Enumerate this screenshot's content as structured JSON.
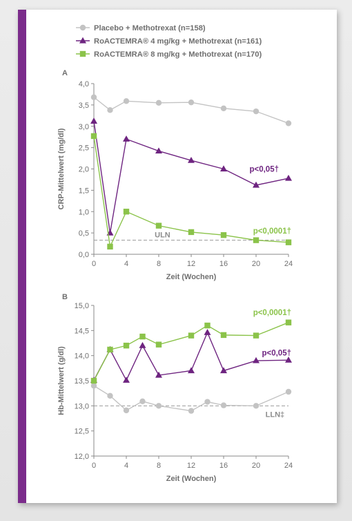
{
  "colors": {
    "placebo": "#c3c3c3",
    "tcz4": "#6e2480",
    "tcz8": "#8bc34a",
    "axis": "#8a8a8a",
    "text": "#6f6f6f",
    "reference_line": "#9a9a9a",
    "border": "#7b2c8b"
  },
  "legend": [
    {
      "label": "Placebo + Methotrexat (n=158)",
      "marker": "circle",
      "color_key": "placebo"
    },
    {
      "label": "RoACTEMRA® 4 mg/kg + Methotrexat (n=161)",
      "marker": "triangle",
      "color_key": "tcz4"
    },
    {
      "label": "RoACTEMRA® 8 mg/kg + Methotrexat (n=170)",
      "marker": "square",
      "color_key": "tcz8"
    }
  ],
  "chart_data": [
    {
      "type": "line",
      "panel_label": "A",
      "xlabel": "Zeit (Wochen)",
      "ylabel": "CRP-Mittelwert (mg/dl)",
      "xlim": [
        0,
        24
      ],
      "ylim": [
        0,
        4.0
      ],
      "xticks": [
        0,
        4,
        8,
        12,
        16,
        20,
        24
      ],
      "xtick_labels": [
        "0",
        "4",
        "8",
        "12",
        "16",
        "20",
        "24"
      ],
      "yticks": [
        0,
        0.5,
        1.0,
        1.5,
        2.0,
        2.5,
        3.0,
        3.5,
        4.0
      ],
      "ytick_labels": [
        "0,0",
        "0,5",
        "1,0",
        "1,5",
        "2,0",
        "2,5",
        "3,0",
        "3,5",
        "4,0"
      ],
      "reference_line": {
        "y": 0.33,
        "label": "ULN"
      },
      "series": [
        {
          "name": "Placebo + Methotrexat (n=158)",
          "color_key": "placebo",
          "marker": "circle",
          "x": [
            0,
            2,
            4,
            8,
            12,
            16,
            20,
            24
          ],
          "y": [
            3.68,
            3.38,
            3.59,
            3.55,
            3.56,
            3.42,
            3.35,
            3.07
          ]
        },
        {
          "name": "RoACTEMRA® 4 mg/kg + Methotrexat (n=161)",
          "color_key": "tcz4",
          "marker": "triangle",
          "x": [
            0,
            2,
            4,
            8,
            12,
            16,
            20,
            24
          ],
          "y": [
            3.12,
            0.5,
            2.7,
            2.42,
            2.2,
            2.0,
            1.62,
            1.78
          ],
          "annotation": "p<0,05†"
        },
        {
          "name": "RoACTEMRA® 8 mg/kg + Methotrexat (n=170)",
          "color_key": "tcz8",
          "marker": "square",
          "x": [
            0,
            2,
            4,
            8,
            12,
            16,
            20,
            24
          ],
          "y": [
            2.77,
            0.18,
            1.0,
            0.67,
            0.52,
            0.45,
            0.33,
            0.28
          ],
          "annotation": "p<0,0001†"
        }
      ]
    },
    {
      "type": "line",
      "panel_label": "B",
      "xlabel": "Zeit (Wochen)",
      "ylabel": "Hb-Mittelwert (g/dl)",
      "xlim": [
        0,
        24
      ],
      "ylim": [
        12.0,
        15.0
      ],
      "xticks": [
        0,
        4,
        8,
        12,
        16,
        20,
        24
      ],
      "xtick_labels": [
        "0",
        "4",
        "8",
        "12",
        "16",
        "20",
        "24"
      ],
      "yticks": [
        12.0,
        12.5,
        13.0,
        13.5,
        14.0,
        14.5,
        15.0
      ],
      "ytick_labels": [
        "12,0",
        "12,5",
        "13,0",
        "13,5",
        "14,0",
        "14,5",
        "15,0"
      ],
      "reference_line": {
        "y": 13.0,
        "label": "LLN‡"
      },
      "series": [
        {
          "name": "Placebo + Methotrexat (n=158)",
          "color_key": "placebo",
          "marker": "circle",
          "x": [
            0,
            2,
            4,
            6,
            8,
            12,
            14,
            16,
            20,
            24
          ],
          "y": [
            13.4,
            13.2,
            12.91,
            13.09,
            13.0,
            12.9,
            13.08,
            13.01,
            13.0,
            13.28
          ]
        },
        {
          "name": "RoACTEMRA® 4 mg/kg + Methotrexat (n=161)",
          "color_key": "tcz4",
          "marker": "triangle",
          "x": [
            0,
            2,
            4,
            6,
            8,
            12,
            14,
            16,
            20,
            24
          ],
          "y": [
            13.51,
            14.12,
            13.51,
            14.2,
            13.61,
            13.7,
            14.46,
            13.7,
            13.9,
            13.91
          ],
          "annotation": "p<0,05†"
        },
        {
          "name": "RoACTEMRA® 8 mg/kg + Methotrexat (n=170)",
          "color_key": "tcz8",
          "marker": "square",
          "x": [
            0,
            2,
            4,
            6,
            8,
            12,
            14,
            16,
            20,
            24
          ],
          "y": [
            13.5,
            14.12,
            14.2,
            14.38,
            14.22,
            14.4,
            14.6,
            14.41,
            14.4,
            14.66
          ],
          "annotation": "p<0,0001†"
        }
      ]
    }
  ]
}
